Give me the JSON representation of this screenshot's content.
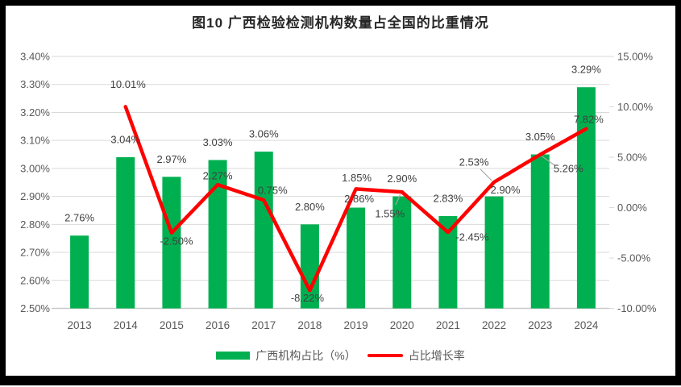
{
  "title": "图10 广西检验检测机构数量占全国的比重情况",
  "legend": {
    "bar_label": "广西机构占比（%）",
    "line_label": "占比增长率"
  },
  "colors": {
    "bar": "#00B050",
    "line": "#FF0000",
    "grid": "#D9D9D9",
    "axis_line": "#C9C9C9",
    "axis_text": "#595959",
    "label_text": "#404040",
    "leader": "#A6A6A6",
    "title_text": "#262626",
    "border": "#000000"
  },
  "chart_data": {
    "type": "bar-line-combo",
    "title": "图10 广西检验检测机构数量占全国的比重情况",
    "categories": [
      "2013",
      "2014",
      "2015",
      "2016",
      "2017",
      "2018",
      "2019",
      "2020",
      "2021",
      "2022",
      "2023",
      "2024"
    ],
    "series": [
      {
        "name": "广西机构占比（%）",
        "chart_type": "bar",
        "axis": "left",
        "values": [
          2.76,
          3.04,
          2.97,
          3.03,
          3.06,
          2.8,
          2.86,
          2.9,
          2.83,
          2.9,
          3.05,
          3.29
        ],
        "data_labels": [
          "2.76%",
          "3.04%",
          "2.97%",
          "3.03%",
          "3.06%",
          "2.80%",
          "2.86%",
          "2.90%",
          "2.83%",
          "2.90%",
          "3.05%",
          "3.29%"
        ]
      },
      {
        "name": "占比增长率",
        "chart_type": "line",
        "axis": "right",
        "values": [
          null,
          10.01,
          -2.5,
          2.27,
          0.75,
          -8.22,
          1.85,
          1.55,
          -2.45,
          2.53,
          5.26,
          7.82
        ],
        "data_labels": [
          null,
          "10.01%",
          "-2.50%",
          "2.27%",
          "0.75%",
          "-8.22%",
          "1.85%",
          "1.55%",
          "-2.45%",
          "2.53%",
          "5.26%",
          "7.82%"
        ]
      }
    ],
    "left_axis": {
      "min": 2.5,
      "max": 3.4,
      "step": 0.1,
      "ticks": [
        "3.40%",
        "3.30%",
        "3.20%",
        "3.10%",
        "3.00%",
        "2.90%",
        "2.80%",
        "2.70%",
        "2.60%",
        "2.50%"
      ]
    },
    "right_axis": {
      "min": -10,
      "max": 15,
      "step": 5,
      "ticks": [
        "15.00%",
        "10.00%",
        "5.00%",
        "0.00%",
        "-5.00%",
        "-10.00%"
      ]
    },
    "grid": true,
    "legend_position": "bottom"
  }
}
